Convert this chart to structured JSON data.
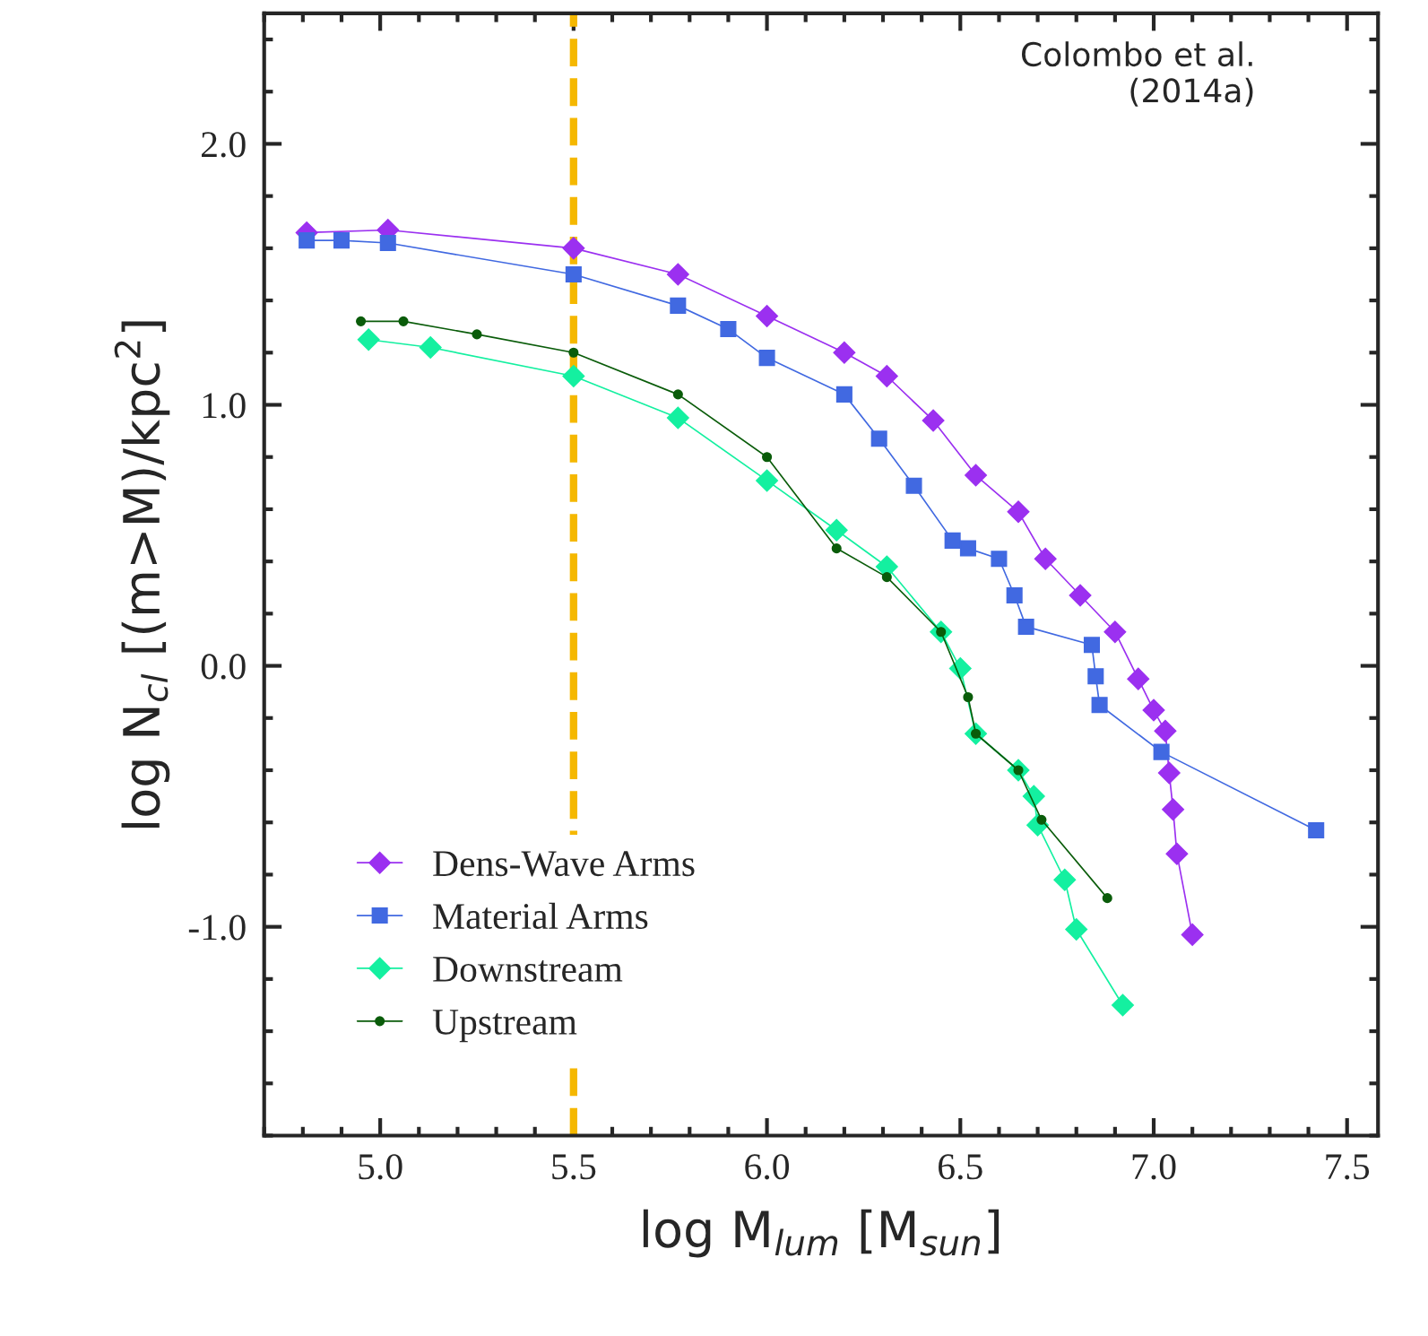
{
  "chart_data": {
    "type": "line",
    "xlabel": "log M$_{lum}$ [M$_{sun}$]",
    "ylabel": "log N$_{cl}$ [(m>M)/kpc$^{2}$]",
    "xlim": [
      4.7,
      7.58
    ],
    "ylim": [
      -1.8,
      2.5
    ],
    "xticks": [
      {
        "value": 5.0,
        "label": "5.0"
      },
      5.5,
      {
        "value": 6.0,
        "label": "6.0"
      },
      6.5,
      {
        "value": 7.0,
        "label": "7.0"
      },
      7.5
    ],
    "yticks": [
      {
        "value": -1.0,
        "label": "-1.0"
      },
      {
        "value": 0.0,
        "label": "0.0"
      },
      {
        "value": 1.0,
        "label": "1.0"
      },
      {
        "value": 2.0,
        "label": "2.0"
      }
    ],
    "grid": false,
    "legend": "bottom left",
    "ref_lines": [
      {
        "axis": "x",
        "value": 5.5,
        "color": "#f5b800",
        "line_style": "dashed"
      }
    ],
    "annotations": [
      "Colombo et al.\n(2014a)"
    ],
    "series": [
      {
        "name": "Dens-Wave Arms",
        "color": "#9b30f0",
        "marker": "diamond",
        "x": [
          4.81,
          5.02,
          5.5,
          5.77,
          6.0,
          6.2,
          6.31,
          6.43,
          6.54,
          6.65,
          6.72,
          6.81,
          6.9,
          6.96,
          7.0,
          7.03,
          7.04,
          7.05,
          7.06,
          7.1
        ],
        "values": [
          1.66,
          1.67,
          1.6,
          1.5,
          1.34,
          1.2,
          1.11,
          0.94,
          0.73,
          0.59,
          0.41,
          0.27,
          0.13,
          -0.05,
          -0.17,
          -0.25,
          -0.41,
          -0.55,
          -0.72,
          -1.03
        ]
      },
      {
        "name": "Material Arms",
        "color": "#4169e1",
        "marker": "square",
        "x": [
          4.81,
          4.9,
          5.02,
          5.5,
          5.77,
          5.9,
          6.0,
          6.2,
          6.29,
          6.38,
          6.48,
          6.52,
          6.6,
          6.64,
          6.67,
          6.84,
          6.85,
          6.86,
          7.02,
          7.42
        ],
        "values": [
          1.63,
          1.63,
          1.62,
          1.5,
          1.38,
          1.29,
          1.18,
          1.04,
          0.87,
          0.69,
          0.48,
          0.45,
          0.41,
          0.27,
          0.15,
          0.08,
          -0.04,
          -0.15,
          -0.33,
          -0.63
        ]
      },
      {
        "name": "Downstream",
        "color": "#14f0a0",
        "marker": "diamond",
        "x": [
          4.97,
          5.13,
          5.5,
          5.77,
          6.0,
          6.18,
          6.31,
          6.45,
          6.5,
          6.54,
          6.65,
          6.69,
          6.7,
          6.77,
          6.8,
          6.92
        ],
        "values": [
          1.25,
          1.22,
          1.11,
          0.95,
          0.71,
          0.52,
          0.38,
          0.13,
          -0.01,
          -0.26,
          -0.4,
          -0.5,
          -0.61,
          -0.82,
          -1.01,
          -1.3
        ]
      },
      {
        "name": "Upstream",
        "color": "#0a5c0a",
        "marker": "circle",
        "x": [
          4.95,
          5.06,
          5.25,
          5.5,
          5.77,
          6.0,
          6.18,
          6.31,
          6.45,
          6.52,
          6.54,
          6.65,
          6.71,
          6.88
        ],
        "values": [
          1.32,
          1.32,
          1.27,
          1.2,
          1.04,
          0.8,
          0.45,
          0.34,
          0.13,
          -0.12,
          -0.26,
          -0.4,
          -0.59,
          -0.89
        ]
      }
    ]
  }
}
